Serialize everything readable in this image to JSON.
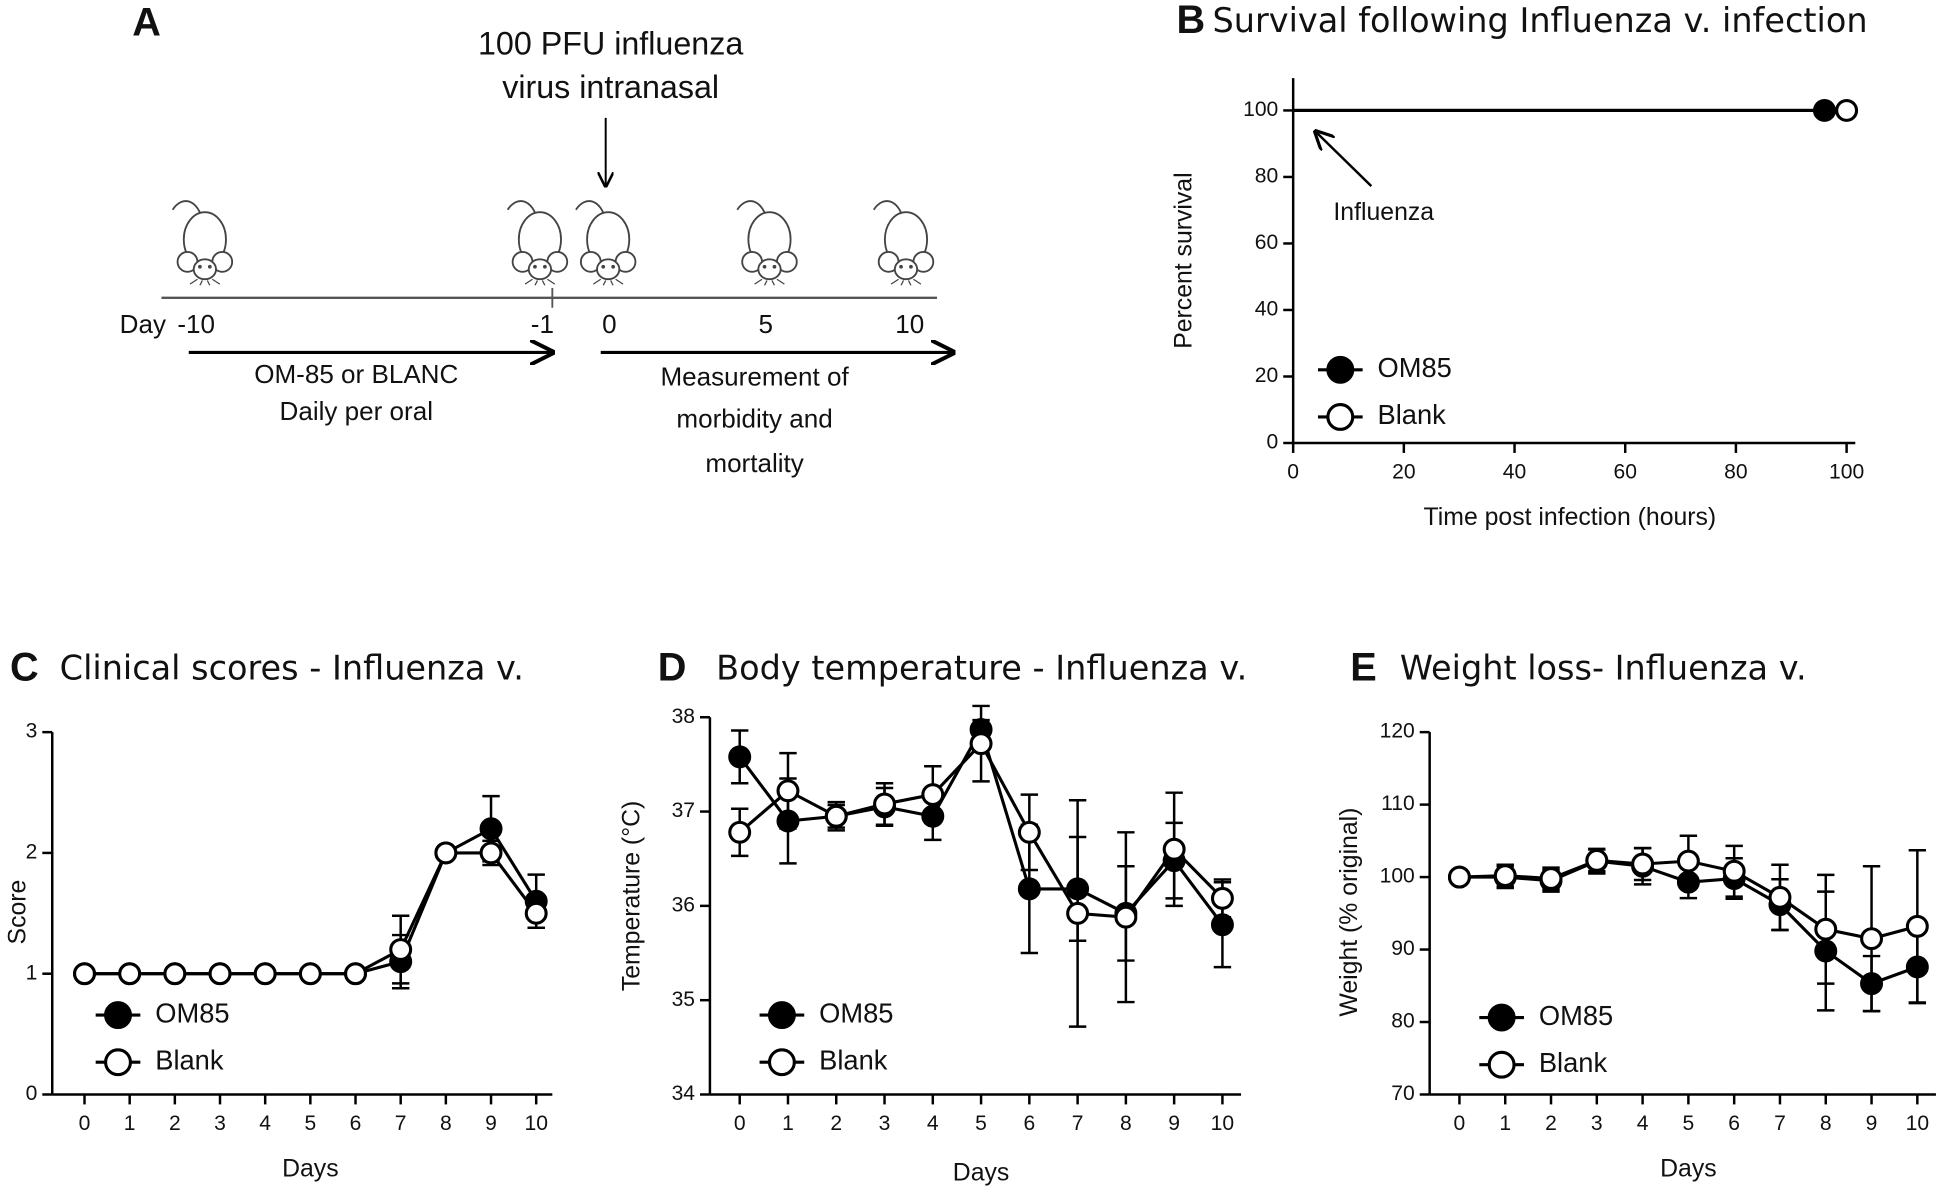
{
  "schematic": {
    "panel": "A",
    "injection": [
      "100 PFU influenza",
      "virus intranasal"
    ],
    "day_label": "Day",
    "days": [
      "-10",
      "-1",
      "0",
      "5",
      "10"
    ],
    "treatment": [
      "OM-85 or BLANC",
      "Daily per oral"
    ],
    "measurement": [
      "Measurement of",
      "morbidity and",
      "mortality"
    ]
  },
  "chart_data": [
    {
      "type": "line",
      "panel": "B",
      "title": "Survival following Influenza v. infection",
      "x_label": "Time post infection (hours)",
      "y_label": "Percent survival",
      "annotation": "Influenza",
      "xlim": [
        0,
        100
      ],
      "xticks": [
        0,
        20,
        40,
        60,
        80,
        100
      ],
      "ylim": [
        0,
        100
      ],
      "yticks": [
        0,
        20,
        40,
        60,
        80,
        100
      ],
      "markers": "last",
      "legend": "lower left",
      "series": [
        {
          "name": "OM85",
          "color": "#000000",
          "marker_fill": "#000000",
          "x": [
            0,
            96
          ],
          "values": [
            100,
            100
          ]
        },
        {
          "name": "Blank",
          "color": "#000000",
          "marker_fill": "#ffffff",
          "x": [
            0,
            100
          ],
          "values": [
            100,
            100
          ]
        }
      ]
    },
    {
      "type": "line",
      "panel": "C",
      "title": "Clinical scores - Influenza v.",
      "x_label": "Days",
      "y_label": "Score",
      "x": [
        0,
        1,
        2,
        3,
        4,
        5,
        6,
        7,
        8,
        9,
        10
      ],
      "xlim": [
        0,
        10
      ],
      "xticks": [
        0,
        1,
        2,
        3,
        4,
        5,
        6,
        7,
        8,
        9,
        10
      ],
      "ylim": [
        0,
        3
      ],
      "yticks": [
        0,
        1,
        2,
        3
      ],
      "markers": "all",
      "legend": "lower left",
      "series": [
        {
          "name": "OM85",
          "color": "#000000",
          "marker_fill": "#000000",
          "values": [
            1,
            1,
            1,
            1,
            1,
            1,
            1,
            1.1,
            2,
            2.2,
            1.6
          ],
          "errors": [
            0,
            0,
            0,
            0,
            0,
            0,
            0,
            0.22,
            0,
            0.27,
            0.22
          ]
        },
        {
          "name": "Blank",
          "color": "#000000",
          "marker_fill": "#ffffff",
          "values": [
            1,
            1,
            1,
            1,
            1,
            1,
            1,
            1.2,
            2,
            2,
            1.5
          ],
          "errors": [
            0,
            0,
            0,
            0,
            0,
            0,
            0,
            0.28,
            0,
            0.1,
            0.12
          ]
        }
      ]
    },
    {
      "type": "line",
      "panel": "D",
      "title": "Body temperature - Influenza v.",
      "x_label": "Days",
      "y_label": "Temperature (°C)",
      "x": [
        0,
        1,
        2,
        3,
        4,
        5,
        6,
        7,
        8,
        9,
        10
      ],
      "xlim": [
        0,
        10
      ],
      "xticks": [
        0,
        1,
        2,
        3,
        4,
        5,
        6,
        7,
        8,
        9,
        10
      ],
      "ylim": [
        34,
        38
      ],
      "yticks": [
        34,
        35,
        36,
        37,
        38
      ],
      "markers": "all",
      "legend": "lower left",
      "series": [
        {
          "name": "OM85",
          "color": "#000000",
          "marker_fill": "#000000",
          "values": [
            37.58,
            36.9,
            36.95,
            37.05,
            36.95,
            37.87,
            36.18,
            36.18,
            35.92,
            36.48,
            35.8
          ],
          "errors": [
            0.28,
            0.45,
            0.15,
            0.2,
            0.25,
            0.1,
            0.68,
            0.55,
            0.5,
            0.4,
            0.45
          ]
        },
        {
          "name": "Blank",
          "color": "#000000",
          "marker_fill": "#ffffff",
          "values": [
            36.78,
            37.22,
            36.95,
            37.08,
            37.18,
            37.72,
            36.78,
            35.92,
            35.88,
            36.6,
            36.08
          ],
          "errors": [
            0.25,
            0.4,
            0.12,
            0.22,
            0.3,
            0.4,
            0.4,
            1.2,
            0.9,
            0.6,
            0.2
          ]
        }
      ]
    },
    {
      "type": "line",
      "panel": "E",
      "title": "Weight loss- Influenza v.",
      "x_label": "Days",
      "y_label": "Weight (% original)",
      "x": [
        0,
        1,
        2,
        3,
        4,
        5,
        6,
        7,
        8,
        9,
        10
      ],
      "xlim": [
        0,
        10
      ],
      "xticks": [
        0,
        1,
        2,
        3,
        4,
        5,
        6,
        7,
        8,
        9,
        10
      ],
      "ylim": [
        70,
        120
      ],
      "yticks": [
        70,
        80,
        90,
        100,
        110,
        120
      ],
      "markers": "all",
      "legend": "lower left",
      "series": [
        {
          "name": "OM85",
          "color": "#000000",
          "marker_fill": "#000000",
          "values": [
            100,
            100,
            99.5,
            102.2,
            101.5,
            99.3,
            99.8,
            96.2,
            89.8,
            85.3,
            87.6
          ],
          "errors": [
            0,
            1.5,
            1.5,
            1.7,
            2.5,
            2.2,
            2.8,
            3.5,
            8.2,
            3.8,
            5
          ]
        },
        {
          "name": "Blank",
          "color": "#000000",
          "marker_fill": "#ffffff",
          "values": [
            100,
            100.2,
            99.8,
            102.3,
            101.8,
            102.2,
            100.8,
            97.2,
            92.8,
            91.5,
            93.2
          ],
          "errors": [
            0,
            1.5,
            1.5,
            1.5,
            2.2,
            3.5,
            3.5,
            4.5,
            7.5,
            10,
            10.5
          ]
        }
      ]
    }
  ]
}
